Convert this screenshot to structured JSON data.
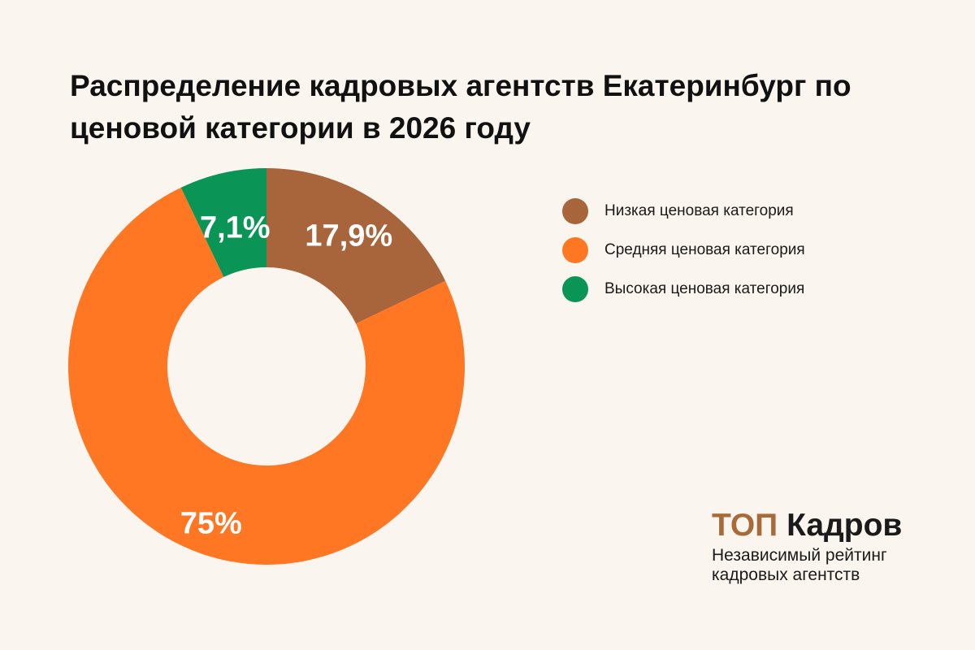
{
  "chart_data": {
    "type": "pie",
    "title": "Распределение кадровых агентств Екатеринбург по ценовой категории в 2026 году",
    "donut": true,
    "categories": [
      "Низкая ценовая категория",
      "Средняя ценовая категория",
      "Высокая ценовая категория"
    ],
    "values": [
      17.9,
      75,
      7.1
    ],
    "value_labels": [
      "17,9%",
      "75%",
      "7,1%"
    ],
    "colors": [
      "#a8643b",
      "#ff7722",
      "#0a9455"
    ],
    "legend_position": "right"
  },
  "brand": {
    "name_part1": "ТОП",
    "name_part2": "Кадров",
    "tagline_line1": "Независимый рейтинг",
    "tagline_line2": "кадровых агентств"
  }
}
